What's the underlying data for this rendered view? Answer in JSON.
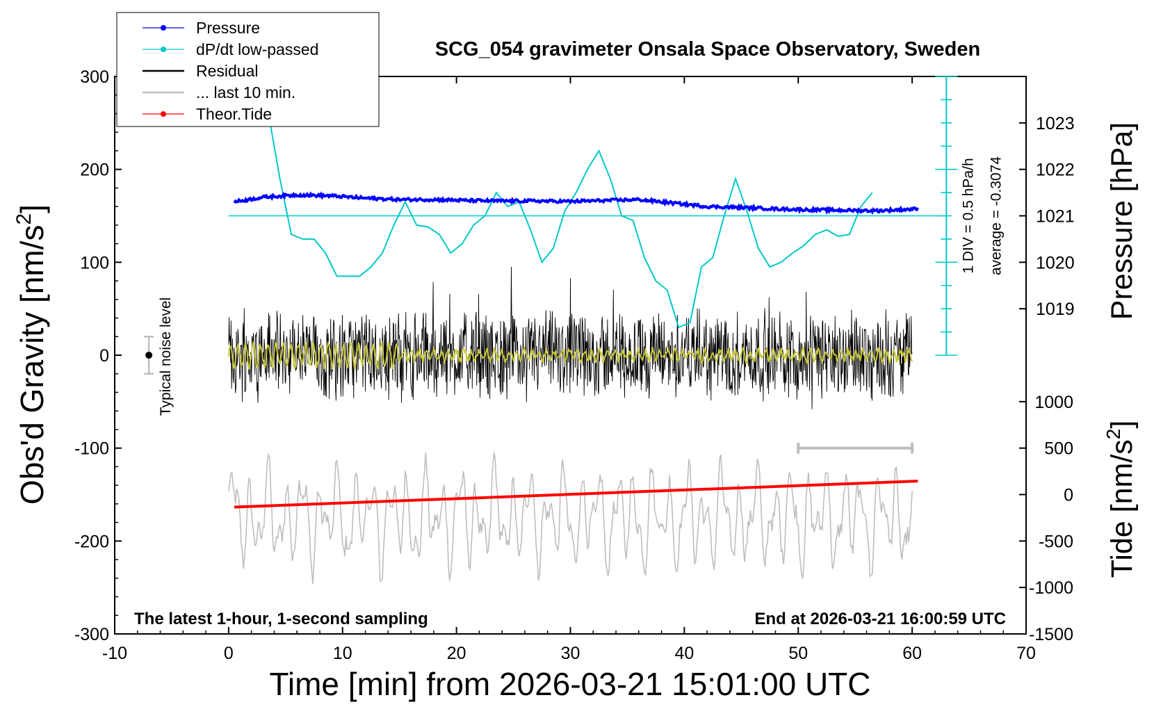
{
  "chart_data": {
    "type": "line",
    "title": "SCG_054 gravimeter Onsala Space Observatory, Sweden",
    "xlabel": "Time [min] from 2026-03-21 15:01:00 UTC",
    "ylabel": "Obs'd Gravity [nm/s",
    "ylabel_sup": "2",
    "ylabel_end": "]",
    "y2label": "Pressure [hPa]",
    "y3label": "Tide [nm/s",
    "y3label_sup": "2",
    "y3label_end": "]",
    "xlim": [
      -10,
      70
    ],
    "ylim": [
      -300,
      300
    ],
    "xticks": [
      -10,
      0,
      10,
      20,
      30,
      40,
      50,
      60,
      70
    ],
    "yticks": [
      -300,
      -200,
      -100,
      0,
      100,
      200,
      300
    ],
    "pressure_axis": {
      "ticks": [
        1019,
        1020,
        1021,
        1022,
        1023
      ],
      "ref_hpa": 1021,
      "ref_gravity": 150,
      "gravity_per_hpa": 50
    },
    "tide_axis": {
      "ticks": [
        -1500,
        -1000,
        -500,
        0,
        500,
        1000
      ],
      "scale": 0.1,
      "offset": -150
    },
    "grid": false,
    "legend_position": "top-left",
    "legend": [
      {
        "label": "Pressure",
        "color": "#0000ff",
        "marker": "dot"
      },
      {
        "label": "dP/dt low-passed",
        "color": "#00c8c8",
        "marker": "dot"
      },
      {
        "label": "Residual",
        "color": "#000000",
        "marker": "none"
      },
      {
        "label": "... last 10 min.",
        "color": "#bebebe",
        "marker": "none"
      },
      {
        "label": "Theor.Tide",
        "color": "#ff0000",
        "marker": "dot"
      }
    ],
    "annotations": {
      "noise_label": "Typical noise level",
      "noise_point": {
        "x": -7,
        "y": 0,
        "err": 20
      },
      "dpdt_scale": "1 DIV = 0.5 hPa/h",
      "dpdt_average": "average = -0.3074",
      "bottom_left": "The latest 1-hour, 1-second sampling",
      "bottom_right": "End at 2026-03-21 16:00:59 UTC",
      "last10_marker": {
        "x_start": 50,
        "x_end": 60,
        "y": -100
      }
    },
    "series": [
      {
        "name": "Pressure",
        "color": "#0000ff",
        "x": [
          0.5,
          3,
          6,
          9,
          12,
          15,
          18,
          21,
          24,
          27,
          30,
          33,
          36,
          38,
          40,
          42,
          45,
          48,
          51,
          54,
          57,
          60.5
        ],
        "y": [
          1021.3,
          1021.4,
          1021.45,
          1021.43,
          1021.38,
          1021.35,
          1021.35,
          1021.33,
          1021.32,
          1021.32,
          1021.31,
          1021.33,
          1021.35,
          1021.3,
          1021.25,
          1021.2,
          1021.18,
          1021.15,
          1021.13,
          1021.12,
          1021.11,
          1021.15
        ]
      },
      {
        "name": "dP/dt low-passed",
        "color": "#00c8c8",
        "x": [
          3.5,
          4.5,
          5.5,
          6.5,
          7.5,
          8.5,
          9.5,
          10.5,
          11.5,
          12.5,
          13.5,
          14.5,
          15.5,
          16.5,
          17.5,
          18.5,
          19.5,
          20.5,
          21.5,
          22.5,
          23.5,
          24.5,
          25.5,
          26.5,
          27.5,
          28.5,
          29.5,
          30.5,
          31.5,
          32.5,
          33.5,
          34.5,
          35.5,
          36.5,
          37.5,
          38.5,
          39.5,
          40.5,
          41.5,
          42.5,
          43.5,
          44.5,
          45.5,
          46.5,
          47.5,
          48.5,
          49.5,
          50.5,
          51.5,
          52.5,
          53.5,
          54.5,
          55.5,
          56.5
        ],
        "y": [
          260,
          190,
          130,
          125,
          125,
          110,
          85,
          85,
          85,
          95,
          110,
          140,
          165,
          140,
          138,
          130,
          110,
          120,
          140,
          150,
          175,
          160,
          165,
          135,
          100,
          115,
          155,
          175,
          200,
          220,
          190,
          150,
          145,
          105,
          80,
          70,
          30,
          35,
          95,
          105,
          150,
          190,
          155,
          115,
          95,
          100,
          110,
          118,
          130,
          135,
          128,
          130,
          160,
          175
        ]
      },
      {
        "name": "Theor.Tide",
        "color": "#ff0000",
        "x": [
          0.5,
          60.5
        ],
        "y": [
          -135,
          145
        ]
      }
    ],
    "residual_summary": {
      "x_range": [
        0,
        60
      ],
      "amplitude": 45,
      "min": -115,
      "max": 155
    },
    "last10_summary": {
      "x_range": [
        0,
        60
      ],
      "center": -175,
      "amplitude": 60,
      "min": -265,
      "max": -95
    }
  }
}
